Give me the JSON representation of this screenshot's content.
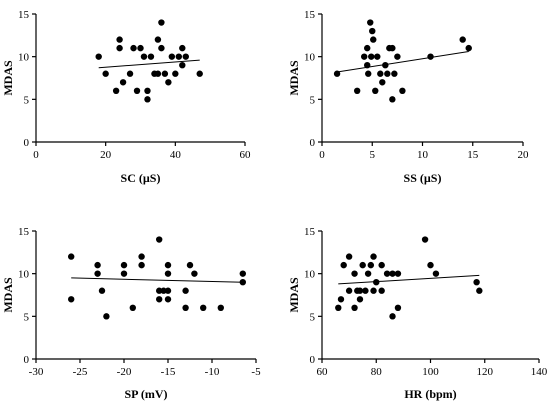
{
  "chart_data": [
    {
      "type": "scatter",
      "xlabel": "SC (µS)",
      "ylabel": "MDAS",
      "xlim": [
        0,
        60
      ],
      "ylim": [
        0,
        15
      ],
      "xticks": [
        0,
        20,
        40,
        60
      ],
      "yticks": [
        0,
        5,
        10,
        15
      ],
      "points": [
        [
          18,
          10
        ],
        [
          20,
          8
        ],
        [
          23,
          6
        ],
        [
          24,
          12
        ],
        [
          24,
          11
        ],
        [
          25,
          7
        ],
        [
          27,
          8
        ],
        [
          28,
          11
        ],
        [
          29,
          6
        ],
        [
          30,
          11
        ],
        [
          31,
          10
        ],
        [
          32,
          6
        ],
        [
          32,
          5
        ],
        [
          33,
          10
        ],
        [
          34,
          8
        ],
        [
          35,
          12
        ],
        [
          35,
          8
        ],
        [
          36,
          14
        ],
        [
          36,
          11
        ],
        [
          37,
          8
        ],
        [
          38,
          7
        ],
        [
          39,
          10
        ],
        [
          40,
          8
        ],
        [
          41,
          10
        ],
        [
          42,
          9
        ],
        [
          42,
          11
        ],
        [
          43,
          10
        ],
        [
          47,
          8
        ]
      ],
      "regression": {
        "x": [
          18,
          47
        ],
        "y": [
          8.7,
          9.6
        ]
      }
    },
    {
      "type": "scatter",
      "xlabel": "SS (µS)",
      "ylabel": "MDAS",
      "xlim": [
        0,
        20
      ],
      "ylim": [
        0,
        15
      ],
      "xticks": [
        0,
        5,
        10,
        15,
        20
      ],
      "yticks": [
        0,
        5,
        10,
        15
      ],
      "points": [
        [
          1.5,
          8
        ],
        [
          3.5,
          6
        ],
        [
          4.2,
          10
        ],
        [
          4.5,
          11
        ],
        [
          4.5,
          9
        ],
        [
          4.6,
          8
        ],
        [
          4.8,
          14
        ],
        [
          4.9,
          10
        ],
        [
          5.0,
          13
        ],
        [
          5.1,
          12
        ],
        [
          5.3,
          6
        ],
        [
          5.5,
          10
        ],
        [
          5.8,
          8
        ],
        [
          6.0,
          7
        ],
        [
          6.3,
          9
        ],
        [
          6.5,
          8
        ],
        [
          6.7,
          11
        ],
        [
          7.0,
          11
        ],
        [
          7.0,
          5
        ],
        [
          7.2,
          8
        ],
        [
          7.5,
          10
        ],
        [
          8.0,
          6
        ],
        [
          10.8,
          10
        ],
        [
          14.0,
          12
        ],
        [
          14.6,
          11
        ]
      ],
      "regression": {
        "x": [
          1.5,
          14.6
        ],
        "y": [
          8.2,
          10.6
        ]
      }
    },
    {
      "type": "scatter",
      "xlabel": "SP (mV)",
      "ylabel": "MDAS",
      "xlim": [
        -30,
        -5
      ],
      "ylim": [
        0,
        15
      ],
      "xticks": [
        -30,
        -25,
        -20,
        -15,
        -10,
        -5
      ],
      "yticks": [
        0,
        5,
        10,
        15
      ],
      "points": [
        [
          -26,
          12
        ],
        [
          -26,
          7
        ],
        [
          -23,
          11
        ],
        [
          -23,
          10
        ],
        [
          -22.5,
          8
        ],
        [
          -22,
          5
        ],
        [
          -20,
          11
        ],
        [
          -20,
          10
        ],
        [
          -19,
          6
        ],
        [
          -18,
          12
        ],
        [
          -18,
          11
        ],
        [
          -16,
          14
        ],
        [
          -16,
          8
        ],
        [
          -16,
          7
        ],
        [
          -15.5,
          8
        ],
        [
          -15,
          11
        ],
        [
          -15,
          10
        ],
        [
          -15,
          8
        ],
        [
          -15,
          7
        ],
        [
          -13,
          6
        ],
        [
          -13,
          8
        ],
        [
          -12.5,
          11
        ],
        [
          -12,
          10
        ],
        [
          -11,
          6
        ],
        [
          -9,
          6
        ],
        [
          -6.5,
          10
        ],
        [
          -6.5,
          9
        ]
      ],
      "regression": {
        "x": [
          -26,
          -6.5
        ],
        "y": [
          9.5,
          9.0
        ]
      }
    },
    {
      "type": "scatter",
      "xlabel": "HR (bpm)",
      "ylabel": "MDAS",
      "xlim": [
        60,
        140
      ],
      "ylim": [
        0,
        15
      ],
      "xticks": [
        60,
        80,
        100,
        120,
        140
      ],
      "yticks": [
        0,
        5,
        10,
        15
      ],
      "points": [
        [
          66,
          6
        ],
        [
          67,
          7
        ],
        [
          68,
          11
        ],
        [
          70,
          12
        ],
        [
          70,
          8
        ],
        [
          72,
          6
        ],
        [
          72,
          10
        ],
        [
          73,
          8
        ],
        [
          74,
          8
        ],
        [
          74,
          7
        ],
        [
          75,
          11
        ],
        [
          76,
          8
        ],
        [
          77,
          10
        ],
        [
          78,
          11
        ],
        [
          79,
          8
        ],
        [
          79,
          12
        ],
        [
          80,
          9
        ],
        [
          82,
          8
        ],
        [
          82,
          11
        ],
        [
          84,
          10
        ],
        [
          86,
          5
        ],
        [
          86,
          10
        ],
        [
          88,
          6
        ],
        [
          88,
          10
        ],
        [
          98,
          14
        ],
        [
          100,
          11
        ],
        [
          102,
          10
        ],
        [
          117,
          9
        ],
        [
          118,
          8
        ]
      ],
      "regression": {
        "x": [
          66,
          118
        ],
        "y": [
          8.8,
          9.8
        ]
      }
    }
  ]
}
